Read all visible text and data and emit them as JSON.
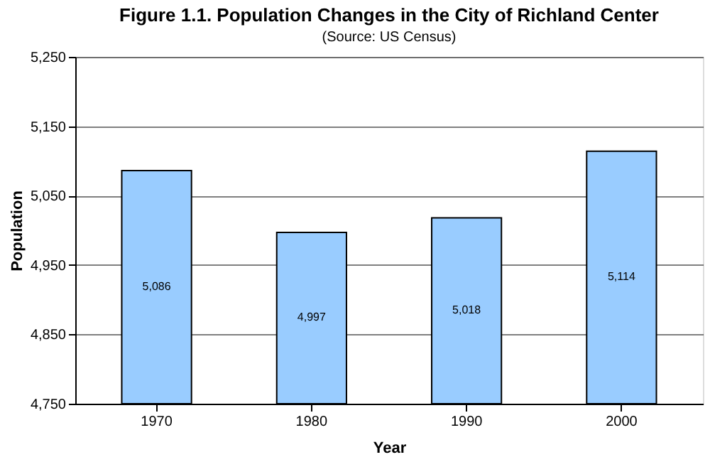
{
  "chart_data": {
    "type": "bar",
    "title": "Figure 1.1. Population Changes in the City of Richland Center",
    "subtitle": "(Source: US Census)",
    "xlabel": "Year",
    "ylabel": "Population",
    "categories": [
      "1970",
      "1980",
      "1990",
      "2000"
    ],
    "values": [
      5086,
      4997,
      5018,
      5114
    ],
    "color": "#99ccff",
    "ylim": [
      4750,
      5250
    ],
    "yticks": [
      {
        "value": 4750,
        "label": "4,750"
      },
      {
        "value": 4850,
        "label": "4,850"
      },
      {
        "value": 4950,
        "label": "4,950"
      },
      {
        "value": 5050,
        "label": "5,050"
      },
      {
        "value": 5150,
        "label": "5,150"
      },
      {
        "value": 5250,
        "label": "5,250"
      }
    ],
    "value_labels": [
      "5,086",
      "4,997",
      "5,018",
      "5,114"
    ],
    "grid": "y"
  }
}
